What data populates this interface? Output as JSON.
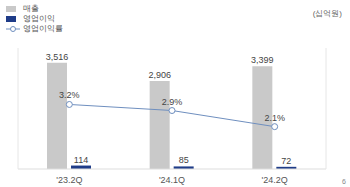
{
  "chart_data": {
    "type": "bar",
    "categories": [
      "'23.2Q",
      "'24.1Q",
      "'24.2Q"
    ],
    "ylabel": "(십억원)",
    "ylim": [
      0,
      4000
    ],
    "yticks": [
      0,
      4000
    ],
    "y2lim": [
      0,
      6
    ],
    "y2ticks": [
      0,
      6
    ],
    "tick_labels": "x",
    "grid": false,
    "legend": "upper left",
    "data_labels": true,
    "annotations": [
      "6"
    ],
    "series": [
      {
        "name": "매출",
        "type": "bar",
        "color": "#c9c9c9",
        "values": [
          3516,
          2906,
          3399
        ],
        "value_labels": [
          "3,516",
          "2,906",
          "3,399"
        ]
      },
      {
        "name": "영업이익",
        "type": "bar",
        "color": "#1f3c88",
        "values": [
          114,
          85,
          72
        ]
      },
      {
        "name": "영업이익률",
        "type": "line",
        "axis": "y2",
        "color": "#6f8fbf",
        "marker": "circle",
        "values": [
          3.2,
          2.9,
          2.1
        ],
        "value_labels": [
          "3.2%",
          "2.9%",
          "2.1%"
        ]
      }
    ]
  }
}
